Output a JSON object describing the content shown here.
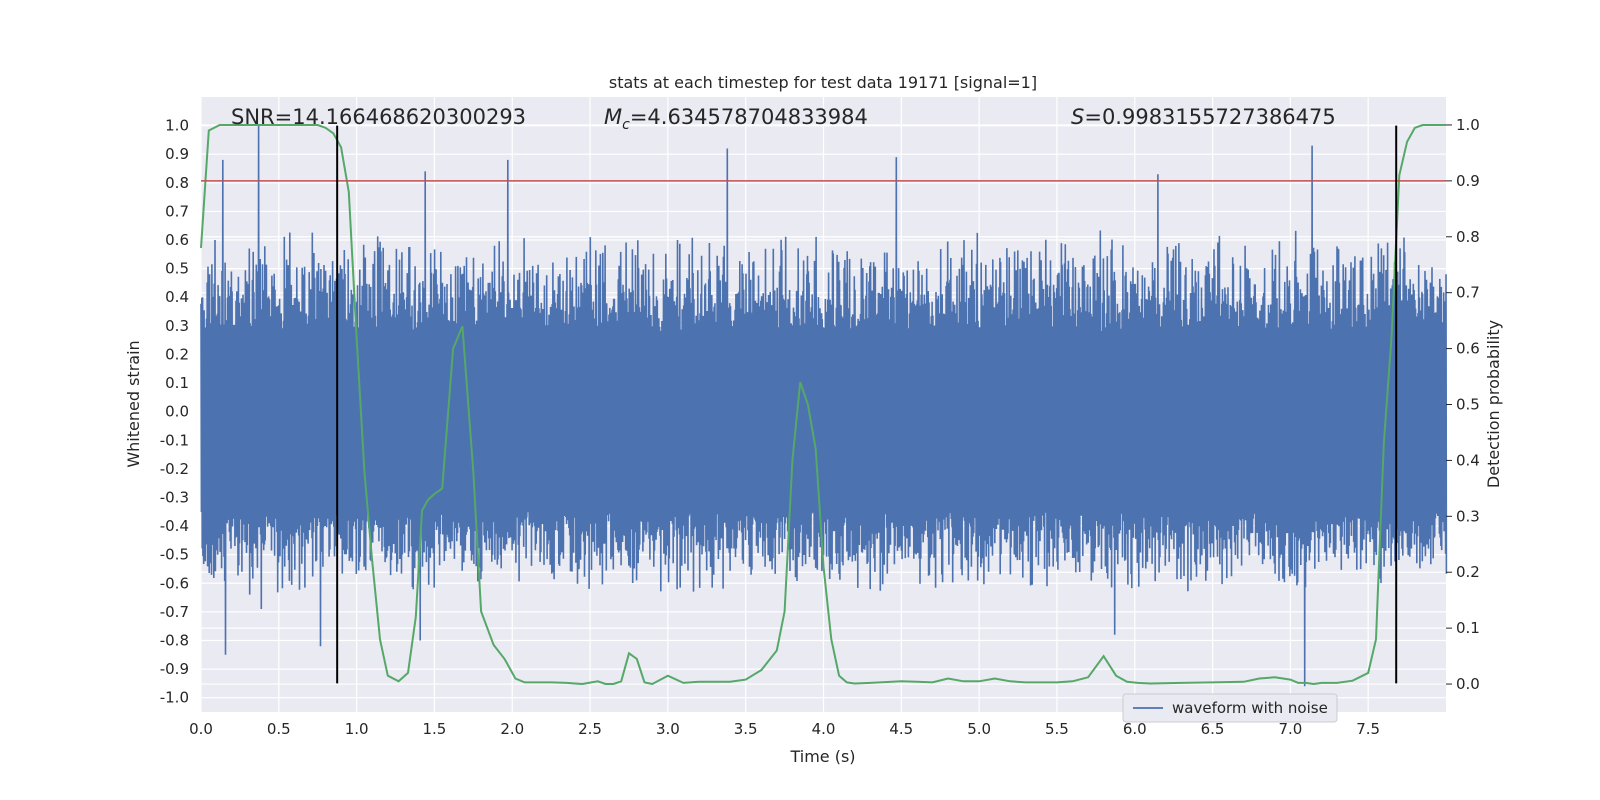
{
  "chart_data": {
    "type": "line",
    "title": "stats at each timestep for test data 19171 [signal=1]",
    "xlabel": "Time (s)",
    "ylabel": "Whitened strain",
    "y2label": "Detection probability",
    "xlim": [
      0,
      8
    ],
    "ylim": [
      -1.05,
      1.1
    ],
    "y2lim": [
      -0.05,
      1.05
    ],
    "xticks": [
      "0.0",
      "0.5",
      "1.0",
      "1.5",
      "2.0",
      "2.5",
      "3.0",
      "3.5",
      "4.0",
      "4.5",
      "5.0",
      "5.5",
      "6.0",
      "6.5",
      "7.0",
      "7.5"
    ],
    "yticks": [
      "1.0",
      "0.9",
      "0.8",
      "0.7",
      "0.6",
      "0.5",
      "0.4",
      "0.3",
      "0.2",
      "0.1",
      "0.0",
      "-0.1",
      "-0.2",
      "-0.3",
      "-0.4",
      "-0.5",
      "-0.6",
      "-0.7",
      "-0.8",
      "-0.9",
      "-1.0"
    ],
    "y2ticks": [
      "1.0",
      "0.9",
      "0.8",
      "0.7",
      "0.6",
      "0.5",
      "0.4",
      "0.3",
      "0.2",
      "0.1",
      "0.0"
    ],
    "grid": true,
    "legend": {
      "position": "bottom-right",
      "entries": [
        "waveform with noise"
      ]
    },
    "annotations": {
      "snr": "SNR=14.166468620300293",
      "mc": "=4.634578704833984",
      "mc_symbol": "M",
      "mc_sub": "c",
      "s": "=0.9983155727386475",
      "s_symbol": "S"
    },
    "threshold": {
      "axis": "right",
      "value": 0.9,
      "color": "#c44e52"
    },
    "vlines": [
      {
        "x": 0.875,
        "y_from": -0.95,
        "y_to": 1.0,
        "color": "#000000"
      },
      {
        "x": 7.68,
        "y_from": -0.95,
        "y_to": 1.0,
        "color": "#000000"
      }
    ],
    "series": [
      {
        "name": "waveform with noise",
        "axis": "left",
        "color": "#4c72b0",
        "kind": "noise",
        "x_range": [
          0,
          8
        ],
        "samples": 1600,
        "band": [
          -0.35,
          0.28
        ],
        "envelope": [
          -0.65,
          0.65
        ],
        "spikes": [
          {
            "x": 0.14,
            "y": 0.88
          },
          {
            "x": 0.37,
            "y": 1.0
          },
          {
            "x": 1.44,
            "y": 0.84
          },
          {
            "x": 1.97,
            "y": 0.88
          },
          {
            "x": 3.38,
            "y": 0.92
          },
          {
            "x": 4.47,
            "y": 0.89
          },
          {
            "x": 6.15,
            "y": 0.83
          },
          {
            "x": 7.14,
            "y": 0.93
          },
          {
            "x": 0.16,
            "y": -0.85
          },
          {
            "x": 0.77,
            "y": -0.82
          },
          {
            "x": 1.41,
            "y": -0.8
          },
          {
            "x": 5.87,
            "y": -0.78
          },
          {
            "x": 7.09,
            "y": -0.96
          },
          {
            "x": 0.39,
            "y": -0.69
          }
        ]
      },
      {
        "name": "",
        "axis": "right",
        "color": "#55a868",
        "x": [
          0.0,
          0.05,
          0.12,
          0.2,
          0.3,
          0.45,
          0.6,
          0.75,
          0.8,
          0.85,
          0.9,
          0.95,
          1.0,
          1.05,
          1.1,
          1.15,
          1.2,
          1.27,
          1.33,
          1.38,
          1.42,
          1.46,
          1.5,
          1.55,
          1.62,
          1.68,
          1.75,
          1.8,
          1.88,
          1.95,
          2.02,
          2.08,
          2.15,
          2.25,
          2.35,
          2.45,
          2.55,
          2.6,
          2.65,
          2.7,
          2.75,
          2.8,
          2.85,
          2.9,
          3.0,
          3.1,
          3.2,
          3.3,
          3.4,
          3.5,
          3.6,
          3.7,
          3.75,
          3.8,
          3.85,
          3.9,
          3.95,
          4.0,
          4.05,
          4.1,
          4.15,
          4.2,
          4.3,
          4.5,
          4.6,
          4.7,
          4.8,
          4.9,
          5.0,
          5.1,
          5.2,
          5.3,
          5.4,
          5.5,
          5.6,
          5.7,
          5.8,
          5.88,
          5.95,
          6.02,
          6.1,
          6.3,
          6.5,
          6.7,
          6.8,
          6.9,
          7.0,
          7.05,
          7.1,
          7.15,
          7.2,
          7.3,
          7.4,
          7.5,
          7.55,
          7.6,
          7.65,
          7.7,
          7.75,
          7.8,
          7.85,
          7.9,
          7.95,
          8.0
        ],
        "values": [
          0.78,
          0.99,
          1.0,
          1.0,
          1.0,
          1.0,
          1.0,
          1.0,
          0.995,
          0.985,
          0.96,
          0.88,
          0.62,
          0.38,
          0.22,
          0.08,
          0.015,
          0.005,
          0.02,
          0.12,
          0.31,
          0.33,
          0.34,
          0.35,
          0.6,
          0.64,
          0.38,
          0.13,
          0.07,
          0.045,
          0.01,
          0.003,
          0.003,
          0.003,
          0.002,
          0.0,
          0.005,
          0.0,
          0.0,
          0.005,
          0.055,
          0.045,
          0.003,
          0.0,
          0.015,
          0.002,
          0.004,
          0.004,
          0.004,
          0.008,
          0.025,
          0.06,
          0.13,
          0.4,
          0.54,
          0.5,
          0.42,
          0.21,
          0.08,
          0.015,
          0.003,
          0.001,
          0.002,
          0.005,
          0.004,
          0.003,
          0.01,
          0.005,
          0.005,
          0.01,
          0.005,
          0.003,
          0.003,
          0.003,
          0.005,
          0.012,
          0.05,
          0.015,
          0.004,
          0.002,
          0.001,
          0.002,
          0.003,
          0.004,
          0.01,
          0.012,
          0.008,
          0.002,
          0.002,
          0.0,
          0.002,
          0.002,
          0.006,
          0.02,
          0.08,
          0.43,
          0.62,
          0.91,
          0.97,
          0.995,
          1.0,
          1.0,
          1.0,
          1.0
        ]
      }
    ]
  }
}
